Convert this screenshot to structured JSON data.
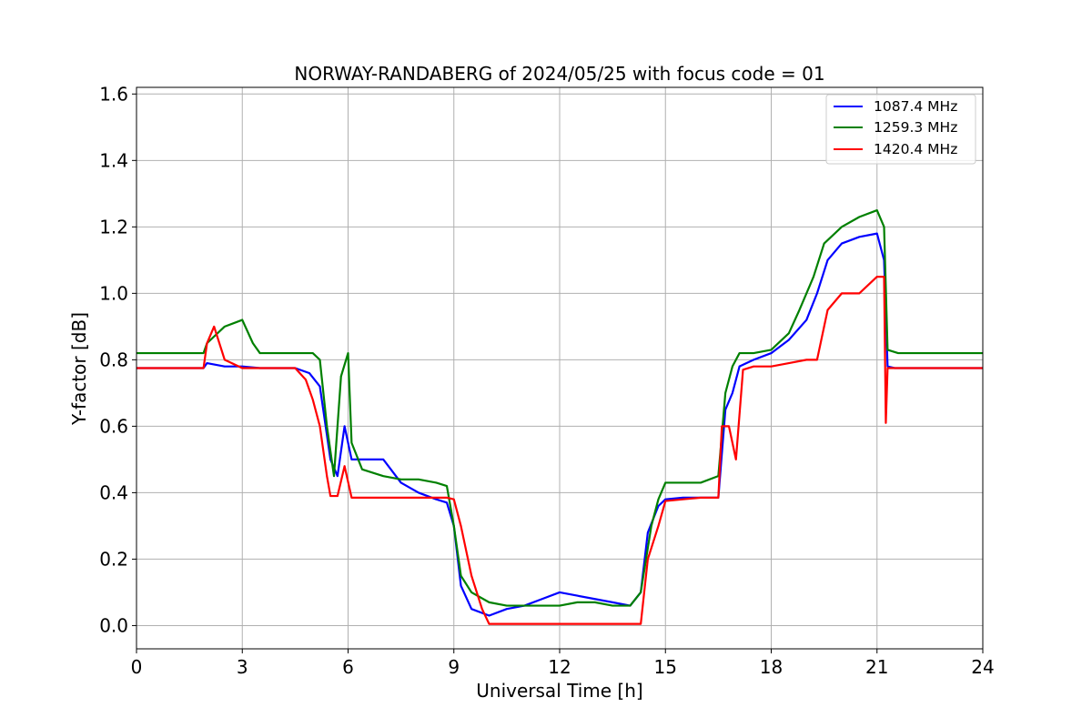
{
  "chart_data": {
    "type": "line",
    "title": "NORWAY-RANDABERG of 2024/05/25 with focus code = 01",
    "xlabel": "Universal Time [h]",
    "ylabel": "Y-factor [dB]",
    "xlim": [
      0,
      24
    ],
    "ylim": [
      -0.07,
      1.62
    ],
    "xticks": [
      0,
      3,
      6,
      9,
      12,
      15,
      18,
      21,
      24
    ],
    "xtick_labels": [
      "0",
      "3",
      "6",
      "9",
      "12",
      "15",
      "18",
      "21",
      "24"
    ],
    "yticks": [
      0.0,
      0.2,
      0.4,
      0.6,
      0.8,
      1.0,
      1.2,
      1.4,
      1.6
    ],
    "ytick_labels": [
      "0.0",
      "0.2",
      "0.4",
      "0.6",
      "0.8",
      "1.0",
      "1.2",
      "1.4",
      "1.6"
    ],
    "grid": true,
    "legend_position": "top-right",
    "series": [
      {
        "name": "1087.4 MHz",
        "color": "#0000ff",
        "x": [
          0,
          1.9,
          2.0,
          2.5,
          3.0,
          3.5,
          4.5,
          4.9,
          5.2,
          5.5,
          5.7,
          5.9,
          6.1,
          6.5,
          7.0,
          7.5,
          8.0,
          8.5,
          8.8,
          9.0,
          9.2,
          9.5,
          10.0,
          10.5,
          11.0,
          11.5,
          12.0,
          12.5,
          13.0,
          13.5,
          14.0,
          14.3,
          14.5,
          14.8,
          15.0,
          15.5,
          16.0,
          16.5,
          16.7,
          16.9,
          17.1,
          17.5,
          18.0,
          18.5,
          19.0,
          19.3,
          19.6,
          20.0,
          20.5,
          21.0,
          21.2,
          21.3,
          21.5,
          22.0,
          23.0,
          24.0
        ],
        "y": [
          0.775,
          0.775,
          0.79,
          0.78,
          0.78,
          0.775,
          0.775,
          0.76,
          0.72,
          0.5,
          0.45,
          0.6,
          0.5,
          0.5,
          0.5,
          0.43,
          0.4,
          0.38,
          0.37,
          0.3,
          0.12,
          0.05,
          0.03,
          0.05,
          0.06,
          0.08,
          0.1,
          0.09,
          0.08,
          0.07,
          0.06,
          0.1,
          0.28,
          0.36,
          0.38,
          0.385,
          0.385,
          0.385,
          0.65,
          0.7,
          0.78,
          0.8,
          0.82,
          0.86,
          0.92,
          1.0,
          1.1,
          1.15,
          1.17,
          1.18,
          1.1,
          0.78,
          0.775,
          0.775,
          0.775,
          0.775
        ]
      },
      {
        "name": "1259.3 MHz",
        "color": "#008000",
        "x": [
          0,
          1.9,
          2.0,
          2.5,
          3.0,
          3.3,
          3.5,
          4.5,
          5.0,
          5.2,
          5.4,
          5.6,
          5.8,
          6.0,
          6.1,
          6.4,
          7.0,
          7.5,
          8.0,
          8.5,
          8.8,
          9.0,
          9.2,
          9.5,
          10.0,
          10.5,
          11.0,
          11.5,
          12.0,
          12.5,
          13.0,
          13.5,
          14.0,
          14.3,
          14.6,
          14.8,
          15.0,
          15.5,
          16.0,
          16.5,
          16.7,
          16.9,
          17.1,
          17.5,
          18.0,
          18.5,
          18.8,
          19.2,
          19.5,
          20.0,
          20.5,
          21.0,
          21.2,
          21.3,
          21.6,
          22.0,
          23.0,
          24.0
        ],
        "y": [
          0.82,
          0.82,
          0.85,
          0.9,
          0.92,
          0.85,
          0.82,
          0.82,
          0.82,
          0.8,
          0.6,
          0.45,
          0.75,
          0.82,
          0.55,
          0.47,
          0.45,
          0.44,
          0.44,
          0.43,
          0.42,
          0.3,
          0.15,
          0.1,
          0.07,
          0.06,
          0.06,
          0.06,
          0.06,
          0.07,
          0.07,
          0.06,
          0.06,
          0.1,
          0.3,
          0.38,
          0.43,
          0.43,
          0.43,
          0.45,
          0.7,
          0.78,
          0.82,
          0.82,
          0.83,
          0.88,
          0.95,
          1.05,
          1.15,
          1.2,
          1.23,
          1.25,
          1.2,
          0.83,
          0.82,
          0.82,
          0.82,
          0.82
        ]
      },
      {
        "name": "1420.4 MHz",
        "color": "#ff0000",
        "x": [
          0,
          1.9,
          2.0,
          2.2,
          2.5,
          3.0,
          3.5,
          4.5,
          4.8,
          5.0,
          5.2,
          5.4,
          5.5,
          5.7,
          5.9,
          6.1,
          6.5,
          7.0,
          7.5,
          8.0,
          8.5,
          8.8,
          9.0,
          9.2,
          9.5,
          9.8,
          10.0,
          10.5,
          11.0,
          11.5,
          12.0,
          12.5,
          13.0,
          13.5,
          14.0,
          14.3,
          14.5,
          14.8,
          15.0,
          15.5,
          16.0,
          16.5,
          16.6,
          16.8,
          17.0,
          17.2,
          17.5,
          18.0,
          18.5,
          19.0,
          19.3,
          19.6,
          20.0,
          20.5,
          21.0,
          21.2,
          21.25,
          21.3,
          21.5,
          22.0,
          23.0,
          24.0
        ],
        "y": [
          0.775,
          0.775,
          0.85,
          0.9,
          0.8,
          0.775,
          0.775,
          0.775,
          0.74,
          0.68,
          0.6,
          0.45,
          0.39,
          0.39,
          0.48,
          0.385,
          0.385,
          0.385,
          0.385,
          0.385,
          0.385,
          0.385,
          0.38,
          0.3,
          0.15,
          0.05,
          0.005,
          0.005,
          0.005,
          0.005,
          0.005,
          0.005,
          0.005,
          0.005,
          0.005,
          0.005,
          0.2,
          0.3,
          0.375,
          0.38,
          0.385,
          0.385,
          0.6,
          0.6,
          0.5,
          0.77,
          0.78,
          0.78,
          0.79,
          0.8,
          0.8,
          0.95,
          1.0,
          1.0,
          1.05,
          1.05,
          0.61,
          0.775,
          0.775,
          0.775,
          0.775,
          0.775
        ]
      }
    ]
  }
}
